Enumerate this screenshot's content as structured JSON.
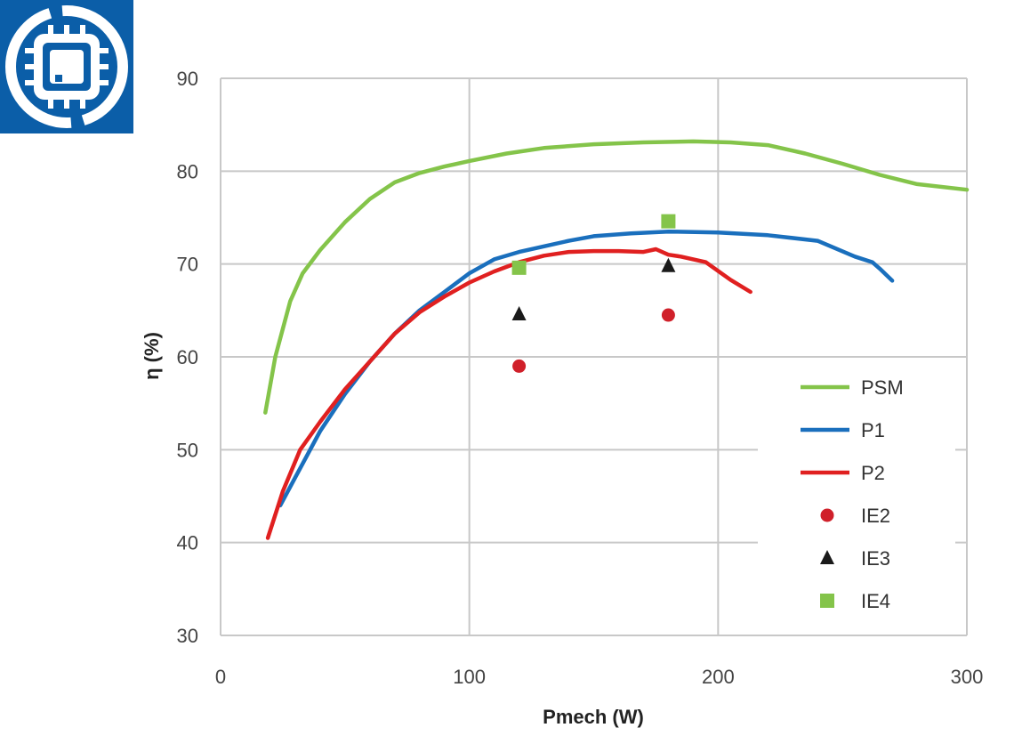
{
  "logo": {
    "icon": "chip-cycle-icon",
    "colors": {
      "background": "#0b5ea8",
      "foreground": "#ffffff"
    }
  },
  "chart_data": {
    "type": "line",
    "xlabel": "Pmech (W)",
    "ylabel": "η (%)",
    "xlim": [
      0,
      300
    ],
    "ylim": [
      30,
      90
    ],
    "x_ticks": [
      "0",
      "100",
      "200",
      "300"
    ],
    "y_ticks": [
      "30",
      "40",
      "50",
      "60",
      "70",
      "80",
      "90"
    ],
    "grid": true,
    "legend_position": "right",
    "series": [
      {
        "name": "PSM",
        "kind": "line",
        "color": "#84c44a",
        "x": [
          18,
          22,
          28,
          33,
          40,
          50,
          60,
          70,
          80,
          90,
          100,
          115,
          130,
          150,
          170,
          190,
          205,
          220,
          235,
          250,
          265,
          280,
          300
        ],
        "y": [
          54,
          60,
          66,
          69,
          71.5,
          74.5,
          77,
          78.8,
          79.8,
          80.5,
          81.1,
          81.9,
          82.5,
          82.9,
          83.1,
          83.2,
          83.1,
          82.8,
          81.9,
          80.8,
          79.6,
          78.6,
          78
        ]
      },
      {
        "name": "P1",
        "kind": "line",
        "color": "#1a6fbd",
        "x": [
          24,
          30,
          40,
          50,
          60,
          70,
          80,
          90,
          100,
          110,
          120,
          130,
          140,
          150,
          165,
          180,
          200,
          220,
          240,
          255,
          262,
          265,
          270
        ],
        "y": [
          44,
          47,
          52,
          56,
          59.5,
          62.5,
          65,
          67,
          69,
          70.5,
          71.3,
          71.9,
          72.5,
          73,
          73.3,
          73.5,
          73.4,
          73.1,
          72.5,
          70.8,
          70.2,
          69.5,
          68.2
        ]
      },
      {
        "name": "P2",
        "kind": "line",
        "color": "#e02020",
        "x": [
          19,
          25,
          32,
          40,
          50,
          60,
          70,
          80,
          90,
          100,
          110,
          120,
          130,
          140,
          150,
          160,
          170,
          175,
          180,
          185,
          195,
          205,
          213
        ],
        "y": [
          40.5,
          45.5,
          50,
          53,
          56.5,
          59.5,
          62.5,
          64.8,
          66.5,
          68,
          69.2,
          70.2,
          70.9,
          71.3,
          71.4,
          71.4,
          71.3,
          71.6,
          71,
          70.8,
          70.2,
          68.3,
          67
        ]
      },
      {
        "name": "IE2",
        "kind": "marker",
        "marker": "circle",
        "color": "#d0202a",
        "x": [
          120,
          180
        ],
        "y": [
          59,
          64.5
        ]
      },
      {
        "name": "IE3",
        "kind": "marker",
        "marker": "triangle",
        "color": "#1a1a1a",
        "x": [
          120,
          180
        ],
        "y": [
          64.6,
          69.8
        ]
      },
      {
        "name": "IE4",
        "kind": "marker",
        "marker": "square",
        "color": "#84c44a",
        "x": [
          120,
          180
        ],
        "y": [
          69.6,
          74.6
        ]
      }
    ]
  }
}
